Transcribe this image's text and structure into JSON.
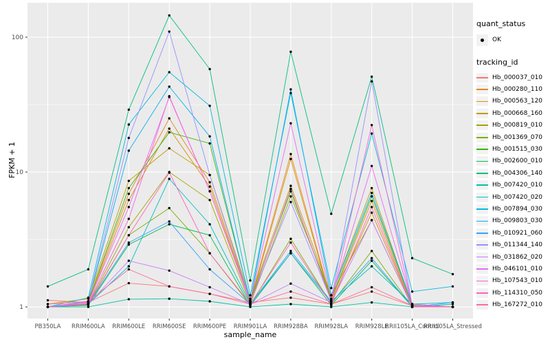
{
  "chart_data": {
    "type": "line",
    "xlabel": "sample_name",
    "ylabel": "FPKM + 1",
    "scale": "log10",
    "ylim": [
      0.82,
      180
    ],
    "y_ticks": [
      1,
      10,
      100
    ],
    "y_minor_ticks": [
      3.162,
      31.62
    ],
    "grid": true,
    "panel_bg": "#EBEBEB",
    "grid_color": "#FFFFFF",
    "tick_label_color": "#4D4D4D",
    "point_color": "#000000",
    "x_categories": [
      "PB350LA",
      "RRIM600LA",
      "RRIM600LE",
      "RRIM600SE",
      "RRIM600PE",
      "RRIM901LA",
      "RRIM928BA",
      "RRIM928LA",
      "RRIM928LE",
      "RRII105LA_Control",
      "RRII105LA_Stressed"
    ],
    "series": [
      {
        "name": "Hb_000037_010",
        "color": "#F8766D",
        "values": [
          1.12,
          1.08,
          1.5,
          1.42,
          1.25,
          1.08,
          1.17,
          1.05,
          1.3,
          1.02,
          1.0
        ]
      },
      {
        "name": "Hb_000280_110",
        "color": "#E88526",
        "values": [
          1.0,
          1.1,
          6.9,
          25,
          8.4,
          1.1,
          13.6,
          1.12,
          6.1,
          1.0,
          1.0
        ]
      },
      {
        "name": "Hb_000563_120",
        "color": "#D89000",
        "values": [
          1.0,
          1.08,
          6.2,
          21,
          7.8,
          1.08,
          12.5,
          1.1,
          5.0,
          1.0,
          1.0
        ]
      },
      {
        "name": "Hb_000668_160",
        "color": "#C09B00",
        "values": [
          1.05,
          1.15,
          8.6,
          15,
          9.5,
          1.15,
          7.9,
          1.22,
          7.6,
          1.02,
          1.0
        ]
      },
      {
        "name": "Hb_000819_010",
        "color": "#A3A500",
        "values": [
          1.0,
          1.05,
          3.9,
          10,
          6.2,
          1.05,
          6.6,
          1.22,
          4.4,
          1.0,
          1.0
        ]
      },
      {
        "name": "Hb_001369_070",
        "color": "#7CAE00",
        "values": [
          1.0,
          1.04,
          3.4,
          5.4,
          2.5,
          1.03,
          3.2,
          1.05,
          2.6,
          1.0,
          1.0
        ]
      },
      {
        "name": "Hb_001515_030",
        "color": "#39B600",
        "values": [
          1.0,
          1.1,
          7.6,
          19.7,
          16.3,
          1.12,
          7.2,
          1.15,
          6.6,
          1.03,
          1.0
        ]
      },
      {
        "name": "Hb_002600_010",
        "color": "#00BB4E",
        "values": [
          1.0,
          1.03,
          2.9,
          4.1,
          3.4,
          1.02,
          2.5,
          1.03,
          2.2,
          1.0,
          1.0
        ]
      },
      {
        "name": "Hb_004306_140",
        "color": "#00BF7D",
        "values": [
          1.42,
          1.9,
          29,
          145,
          58,
          1.57,
          78,
          4.9,
          51,
          2.3,
          1.75
        ]
      },
      {
        "name": "Hb_007420_010",
        "color": "#00C1A3",
        "values": [
          1.0,
          1.0,
          1.14,
          1.15,
          1.1,
          1.0,
          1.05,
          1.0,
          1.08,
          1.0,
          1.05
        ]
      },
      {
        "name": "Hb_007420_020",
        "color": "#00BFC4",
        "values": [
          1.0,
          1.05,
          2.0,
          8.9,
          4.1,
          1.05,
          2.6,
          1.1,
          2.0,
          1.05,
          1.08
        ]
      },
      {
        "name": "Hb_007894_030",
        "color": "#00BAE0",
        "values": [
          1.0,
          1.17,
          22.5,
          55,
          31,
          1.22,
          38.5,
          1.38,
          19.3,
          1.3,
          1.42
        ]
      },
      {
        "name": "Hb_009803_030",
        "color": "#00B0F6",
        "values": [
          1.0,
          1.1,
          14.4,
          43,
          18.4,
          1.1,
          41,
          1.22,
          7.0,
          1.05,
          1.0
        ]
      },
      {
        "name": "Hb_010921_060",
        "color": "#35A2FF",
        "values": [
          1.0,
          1.05,
          3.0,
          4.3,
          1.9,
          1.05,
          2.5,
          1.08,
          2.3,
          1.0,
          1.08
        ]
      },
      {
        "name": "Hb_011344_140",
        "color": "#9590FF",
        "values": [
          1.0,
          1.1,
          17.9,
          110,
          9.5,
          1.1,
          6.0,
          1.12,
          47,
          1.02,
          1.0
        ]
      },
      {
        "name": "Hb_031862_020",
        "color": "#C77CFF",
        "values": [
          1.0,
          1.05,
          2.2,
          1.86,
          1.4,
          1.05,
          1.49,
          1.08,
          4.4,
          1.0,
          1.0
        ]
      },
      {
        "name": "Hb_046101_010",
        "color": "#E76BF3",
        "values": [
          1.0,
          1.08,
          5.5,
          36,
          7.2,
          1.1,
          23,
          1.15,
          11.1,
          1.05,
          1.0
        ]
      },
      {
        "name": "Hb_107543_010",
        "color": "#FA62DB",
        "values": [
          1.0,
          1.06,
          4.5,
          36.5,
          7.2,
          1.08,
          7.5,
          1.1,
          22.3,
          1.02,
          1.0
        ]
      },
      {
        "name": "Hb_114310_050",
        "color": "#FF62BC",
        "values": [
          1.0,
          1.05,
          3.4,
          9.9,
          2.5,
          1.05,
          3.0,
          1.05,
          5.5,
          1.0,
          1.0
        ]
      },
      {
        "name": "Hb_167272_010",
        "color": "#FF6A98",
        "values": [
          1.05,
          1.1,
          1.9,
          1.42,
          1.25,
          1.05,
          1.3,
          1.05,
          1.4,
          1.02,
          1.0
        ]
      }
    ],
    "legend": {
      "position": "right",
      "key_bg": "#F2F2F2",
      "quant_title": "quant_status",
      "quant_items": [
        {
          "label": "OK",
          "shape": "point"
        }
      ],
      "tracking_title": "tracking_id"
    }
  }
}
